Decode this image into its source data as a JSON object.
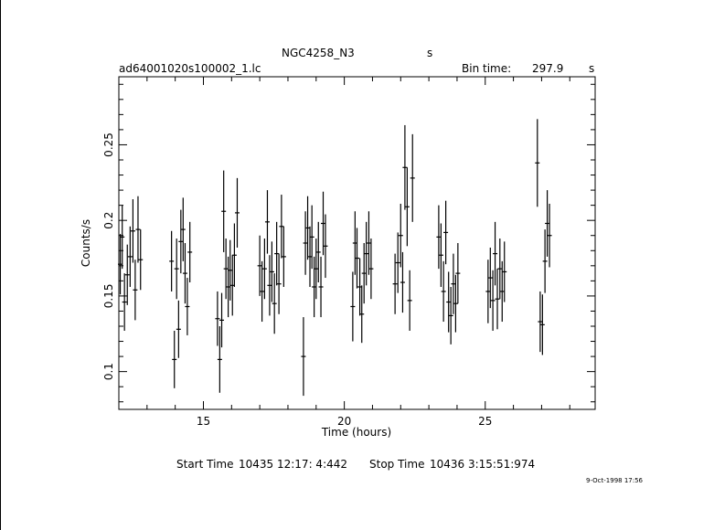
{
  "header": {
    "object": "NGC4258_N3",
    "object_unit": "s",
    "file": "ad64001020s100002_1.lc",
    "bin_label": "Bin time:",
    "bin_value": "297.9",
    "bin_unit": "s"
  },
  "footer": {
    "start_label": "Start Time",
    "start_value": "10435 12:17: 4:442",
    "stop_label": "Stop Time",
    "stop_value": "10436  3:15:51:974",
    "stamp": "9-Oct-1998 17:56"
  },
  "chart_data": {
    "type": "scatter",
    "title": "NGC4258_N3",
    "xlabel": "Time (hours)",
    "ylabel": "Counts/s",
    "xlim": [
      12.0,
      28.9
    ],
    "ylim": [
      0.075,
      0.295
    ],
    "xticks": [
      15,
      20,
      25
    ],
    "yticks": [
      0.1,
      0.15,
      0.2,
      0.25
    ],
    "xtick_labels": [
      "15",
      "20",
      "25"
    ],
    "ytick_labels": [
      "0.1",
      "0.15",
      "0.2",
      "0.25"
    ],
    "grid": false,
    "points": [
      {
        "x": 12.05,
        "y": 0.171,
        "e": 0.02
      },
      {
        "x": 12.12,
        "y": 0.189,
        "e": 0.021
      },
      {
        "x": 12.2,
        "y": 0.146,
        "e": 0.019
      },
      {
        "x": 12.3,
        "y": 0.164,
        "e": 0.02
      },
      {
        "x": 12.4,
        "y": 0.176,
        "e": 0.02
      },
      {
        "x": 12.5,
        "y": 0.193,
        "e": 0.021
      },
      {
        "x": 12.58,
        "y": 0.154,
        "e": 0.02
      },
      {
        "x": 12.68,
        "y": 0.194,
        "e": 0.022
      },
      {
        "x": 12.77,
        "y": 0.174,
        "e": 0.02
      },
      {
        "x": 13.87,
        "y": 0.173,
        "e": 0.02
      },
      {
        "x": 13.97,
        "y": 0.108,
        "e": 0.019
      },
      {
        "x": 14.05,
        "y": 0.168,
        "e": 0.02
      },
      {
        "x": 14.12,
        "y": 0.128,
        "e": 0.019
      },
      {
        "x": 14.2,
        "y": 0.186,
        "e": 0.021
      },
      {
        "x": 14.28,
        "y": 0.194,
        "e": 0.021
      },
      {
        "x": 14.35,
        "y": 0.165,
        "e": 0.02
      },
      {
        "x": 14.43,
        "y": 0.143,
        "e": 0.019
      },
      {
        "x": 14.52,
        "y": 0.179,
        "e": 0.02
      },
      {
        "x": 15.5,
        "y": 0.135,
        "e": 0.018
      },
      {
        "x": 15.58,
        "y": 0.108,
        "e": 0.022
      },
      {
        "x": 15.65,
        "y": 0.134,
        "e": 0.018
      },
      {
        "x": 15.72,
        "y": 0.206,
        "e": 0.027
      },
      {
        "x": 15.8,
        "y": 0.168,
        "e": 0.02
      },
      {
        "x": 15.88,
        "y": 0.156,
        "e": 0.02
      },
      {
        "x": 15.95,
        "y": 0.167,
        "e": 0.02
      },
      {
        "x": 16.03,
        "y": 0.157,
        "e": 0.02
      },
      {
        "x": 16.1,
        "y": 0.177,
        "e": 0.021
      },
      {
        "x": 16.2,
        "y": 0.205,
        "e": 0.023
      },
      {
        "x": 17.0,
        "y": 0.17,
        "e": 0.02
      },
      {
        "x": 17.08,
        "y": 0.153,
        "e": 0.02
      },
      {
        "x": 17.17,
        "y": 0.168,
        "e": 0.02
      },
      {
        "x": 17.27,
        "y": 0.199,
        "e": 0.021
      },
      {
        "x": 17.35,
        "y": 0.157,
        "e": 0.02
      },
      {
        "x": 17.43,
        "y": 0.166,
        "e": 0.02
      },
      {
        "x": 17.52,
        "y": 0.145,
        "e": 0.02
      },
      {
        "x": 17.6,
        "y": 0.178,
        "e": 0.021
      },
      {
        "x": 17.68,
        "y": 0.158,
        "e": 0.02
      },
      {
        "x": 17.77,
        "y": 0.196,
        "e": 0.021
      },
      {
        "x": 17.85,
        "y": 0.176,
        "e": 0.02
      },
      {
        "x": 18.55,
        "y": 0.11,
        "e": 0.026
      },
      {
        "x": 18.62,
        "y": 0.185,
        "e": 0.021
      },
      {
        "x": 18.7,
        "y": 0.195,
        "e": 0.021
      },
      {
        "x": 18.78,
        "y": 0.176,
        "e": 0.02
      },
      {
        "x": 18.85,
        "y": 0.189,
        "e": 0.021
      },
      {
        "x": 18.93,
        "y": 0.156,
        "e": 0.02
      },
      {
        "x": 19.0,
        "y": 0.168,
        "e": 0.02
      },
      {
        "x": 19.08,
        "y": 0.179,
        "e": 0.02
      },
      {
        "x": 19.17,
        "y": 0.156,
        "e": 0.02
      },
      {
        "x": 19.25,
        "y": 0.198,
        "e": 0.021
      },
      {
        "x": 19.33,
        "y": 0.183,
        "e": 0.021
      },
      {
        "x": 20.3,
        "y": 0.143,
        "e": 0.023
      },
      {
        "x": 20.38,
        "y": 0.185,
        "e": 0.021
      },
      {
        "x": 20.45,
        "y": 0.175,
        "e": 0.02
      },
      {
        "x": 20.55,
        "y": 0.156,
        "e": 0.019
      },
      {
        "x": 20.62,
        "y": 0.138,
        "e": 0.019
      },
      {
        "x": 20.7,
        "y": 0.165,
        "e": 0.02
      },
      {
        "x": 20.78,
        "y": 0.178,
        "e": 0.021
      },
      {
        "x": 20.87,
        "y": 0.185,
        "e": 0.021
      },
      {
        "x": 20.95,
        "y": 0.168,
        "e": 0.02
      },
      {
        "x": 21.8,
        "y": 0.158,
        "e": 0.02
      },
      {
        "x": 21.9,
        "y": 0.172,
        "e": 0.02
      },
      {
        "x": 22.0,
        "y": 0.19,
        "e": 0.021
      },
      {
        "x": 22.07,
        "y": 0.159,
        "e": 0.02
      },
      {
        "x": 22.15,
        "y": 0.235,
        "e": 0.028
      },
      {
        "x": 22.23,
        "y": 0.209,
        "e": 0.026
      },
      {
        "x": 22.32,
        "y": 0.147,
        "e": 0.02
      },
      {
        "x": 22.42,
        "y": 0.228,
        "e": 0.029
      },
      {
        "x": 23.35,
        "y": 0.189,
        "e": 0.021
      },
      {
        "x": 23.43,
        "y": 0.177,
        "e": 0.021
      },
      {
        "x": 23.52,
        "y": 0.153,
        "e": 0.02
      },
      {
        "x": 23.6,
        "y": 0.192,
        "e": 0.021
      },
      {
        "x": 23.7,
        "y": 0.146,
        "e": 0.02
      },
      {
        "x": 23.78,
        "y": 0.137,
        "e": 0.019
      },
      {
        "x": 23.87,
        "y": 0.158,
        "e": 0.02
      },
      {
        "x": 23.95,
        "y": 0.145,
        "e": 0.019
      },
      {
        "x": 24.03,
        "y": 0.165,
        "e": 0.02
      },
      {
        "x": 25.1,
        "y": 0.153,
        "e": 0.021
      },
      {
        "x": 25.18,
        "y": 0.162,
        "e": 0.02
      },
      {
        "x": 25.27,
        "y": 0.147,
        "e": 0.02
      },
      {
        "x": 25.35,
        "y": 0.178,
        "e": 0.021
      },
      {
        "x": 25.43,
        "y": 0.148,
        "e": 0.02
      },
      {
        "x": 25.52,
        "y": 0.168,
        "e": 0.02
      },
      {
        "x": 25.6,
        "y": 0.153,
        "e": 0.02
      },
      {
        "x": 25.68,
        "y": 0.166,
        "e": 0.02
      },
      {
        "x": 26.85,
        "y": 0.238,
        "e": 0.029
      },
      {
        "x": 26.95,
        "y": 0.133,
        "e": 0.02
      },
      {
        "x": 27.03,
        "y": 0.131,
        "e": 0.02
      },
      {
        "x": 27.12,
        "y": 0.173,
        "e": 0.021
      },
      {
        "x": 27.2,
        "y": 0.198,
        "e": 0.022
      },
      {
        "x": 27.28,
        "y": 0.19,
        "e": 0.021
      }
    ]
  }
}
